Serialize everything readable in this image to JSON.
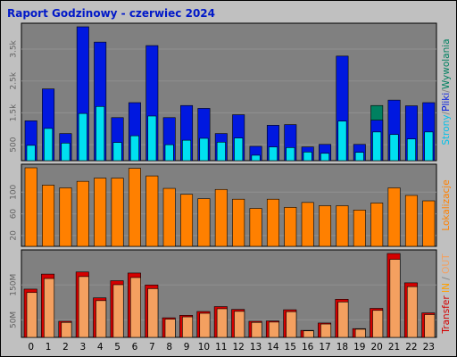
{
  "title": "Raport Godzinowy -  czerwiec 2024",
  "colors": {
    "background": "#c0c0c0",
    "panel": "#808080",
    "grid": "#909090",
    "hits": "#0018e0",
    "files": "#00e0f0",
    "pages": "#00c0e8",
    "visits": "#ff8000",
    "kbytes": "#d40000",
    "transfer_bar": "#f4a060",
    "title": "#0018c8"
  },
  "chart_data": [
    {
      "type": "bar",
      "name": "requests",
      "categories": [
        "0",
        "1",
        "2",
        "3",
        "4",
        "5",
        "6",
        "7",
        "8",
        "9",
        "10",
        "11",
        "12",
        "13",
        "14",
        "15",
        "16",
        "17",
        "18",
        "19",
        "20",
        "21",
        "22",
        "23"
      ],
      "ytick_labels": [
        "500",
        "1.5k",
        "2.5k",
        "3.5k"
      ],
      "ytick_values": [
        500,
        1500,
        2500,
        3500
      ],
      "ylim": [
        0,
        4200
      ],
      "axis_label_parts": [
        {
          "text": "Strony",
          "color": "#00c0e8"
        },
        {
          "text": "/",
          "color": "#808080"
        },
        {
          "text": "Pliki",
          "color": "#0018e0"
        },
        {
          "text": "/",
          "color": "#808080"
        },
        {
          "text": "Wywolania",
          "color": "#008060"
        }
      ],
      "series": [
        {
          "role": "hits",
          "values": [
            1250,
            2250,
            850,
            4200,
            3720,
            1350,
            1820,
            3610,
            1350,
            1730,
            1640,
            850,
            1440,
            450,
            1110,
            1130,
            430,
            510,
            3280,
            510,
            1270,
            1900,
            1720,
            1820
          ]
        },
        {
          "role": "files",
          "values": [
            1250,
            2250,
            850,
            4200,
            3720,
            1350,
            1820,
            3610,
            1350,
            1730,
            1640,
            850,
            1440,
            450,
            1110,
            1130,
            430,
            510,
            3280,
            510,
            1730,
            1900,
            1720,
            1820
          ]
        },
        {
          "role": "pages",
          "values": [
            480,
            1010,
            550,
            1480,
            1700,
            570,
            780,
            1400,
            500,
            640,
            700,
            580,
            710,
            170,
            430,
            410,
            270,
            230,
            1240,
            260,
            900,
            820,
            680,
            900
          ]
        }
      ]
    },
    {
      "type": "bar",
      "name": "visits",
      "categories": [
        "0",
        "1",
        "2",
        "3",
        "4",
        "5",
        "6",
        "7",
        "8",
        "9",
        "10",
        "11",
        "12",
        "13",
        "14",
        "15",
        "16",
        "17",
        "18",
        "19",
        "20",
        "21",
        "22",
        "23"
      ],
      "ytick_labels": [
        "20",
        "60",
        "100"
      ],
      "ytick_values": [
        20,
        60,
        100
      ],
      "ylim": [
        0,
        145
      ],
      "axis_label_parts": [
        {
          "text": "Lokalizacje",
          "color": "#ff8000"
        }
      ],
      "series": [
        {
          "role": "visits",
          "values": [
            145,
            113,
            108,
            120,
            126,
            126,
            144,
            130,
            107,
            96,
            88,
            105,
            87,
            70,
            87,
            72,
            81,
            75,
            75,
            67,
            80,
            108,
            94,
            84
          ]
        }
      ]
    },
    {
      "type": "bar",
      "name": "transfer",
      "categories": [
        "0",
        "1",
        "2",
        "3",
        "4",
        "5",
        "6",
        "7",
        "8",
        "9",
        "10",
        "11",
        "12",
        "13",
        "14",
        "15",
        "16",
        "17",
        "18",
        "19",
        "20",
        "21",
        "22",
        "23"
      ],
      "ytick_labels": [
        "50M",
        "150M"
      ],
      "ytick_values": [
        50,
        150
      ],
      "ylim": [
        0,
        240
      ],
      "axis_label_parts": [
        {
          "text": "Transfer",
          "color": "#d40000"
        },
        {
          "text": "  ",
          "color": "#808080"
        },
        {
          "text": "IN",
          "color": "#ffa000"
        },
        {
          "text": " / ",
          "color": "#808080"
        },
        {
          "text": "OUT",
          "color": "#f4a060"
        }
      ],
      "series": [
        {
          "role": "kbytes",
          "values": [
            138,
            181,
            46,
            187,
            113,
            162,
            184,
            150,
            56,
            63,
            74,
            88,
            80,
            46,
            47,
            79,
            20,
            41,
            109,
            25,
            83,
            240,
            156,
            70
          ]
        }
      ]
    }
  ]
}
